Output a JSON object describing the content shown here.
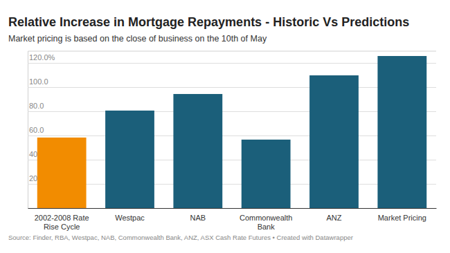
{
  "chart_data": {
    "type": "bar",
    "title": "Relative Increase in Mortgage Repayments - Historic Vs Predictions",
    "subtitle": "Market pricing is based on the close of business on the 10th of May",
    "source": "Source: Finder, RBA, Westpac, NAB, Commonwealth Bank, ANZ, ASX Cash Rate Futures • Created with Datawrapper",
    "categories": [
      "2002-2008 Rate Rise Cycle",
      "Westpac",
      "NAB",
      "Commonwealth Bank",
      "ANZ",
      "Market Pricing"
    ],
    "values": [
      58.3,
      80.6,
      94.3,
      56.6,
      109.7,
      125.7
    ],
    "colors": [
      "#f28c00",
      "#1b5f7a",
      "#1b5f7a",
      "#1b5f7a",
      "#1b5f7a",
      "#1b5f7a"
    ],
    "ylim": [
      0,
      130
    ],
    "yticks": [
      {
        "value": 20,
        "label": "20.0"
      },
      {
        "value": 40,
        "label": "40.0"
      },
      {
        "value": 60,
        "label": "60.0"
      },
      {
        "value": 80,
        "label": "80.0"
      },
      {
        "value": 100,
        "label": "100.0"
      },
      {
        "value": 120,
        "label": "120.0%"
      }
    ],
    "grid": true
  }
}
